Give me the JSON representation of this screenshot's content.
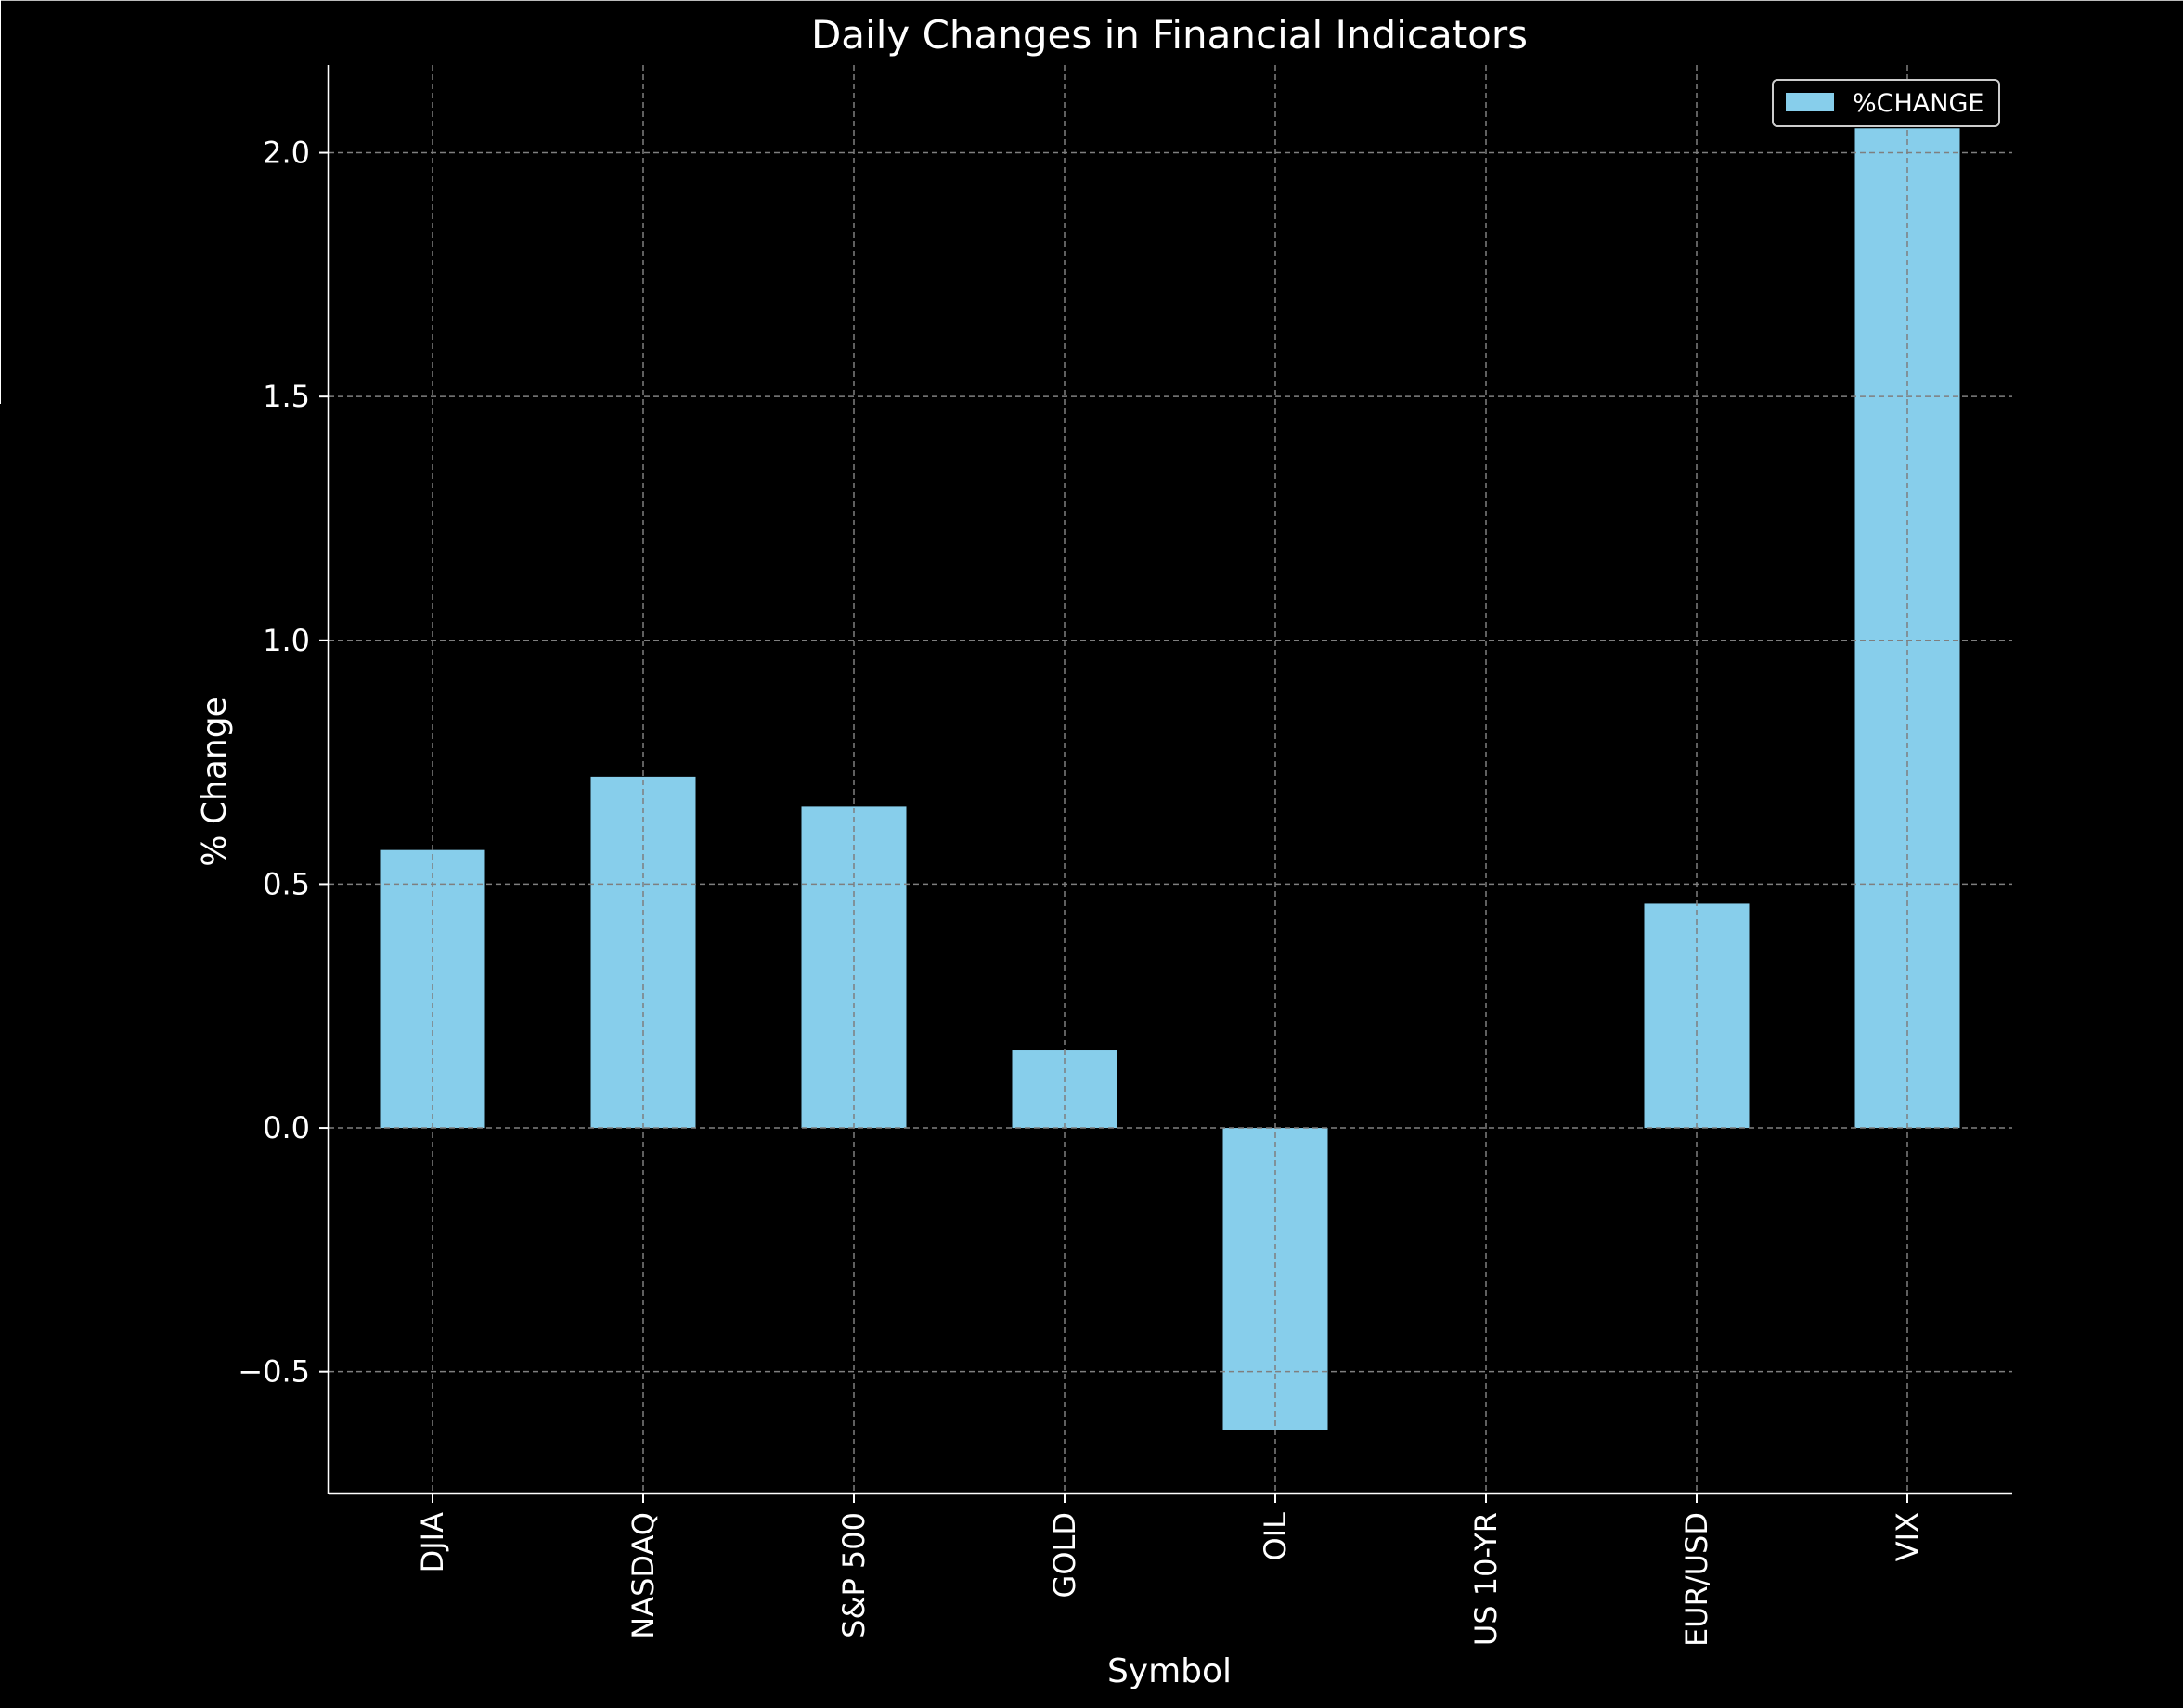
{
  "chart_data": {
    "type": "bar",
    "title": "Daily Changes in Financial Indicators",
    "xlabel": "Symbol",
    "ylabel": "% Change",
    "categories": [
      "DJIA",
      "NASDAQ",
      "S&P 500",
      "GOLD",
      "OIL",
      "US 10-YR",
      "EUR/USD",
      "VIX"
    ],
    "series": [
      {
        "name": "%CHANGE",
        "values": [
          0.57,
          0.72,
          0.66,
          0.16,
          -0.62,
          0.0,
          0.46,
          2.05
        ],
        "color": "#87CEEB"
      }
    ],
    "ylim": [
      -0.75,
      2.18
    ],
    "yticks": [
      -0.5,
      0.0,
      0.5,
      1.0,
      1.5,
      2.0
    ],
    "ytick_labels": [
      "−0.5",
      "0.0",
      "0.5",
      "1.0",
      "1.5",
      "2.0"
    ],
    "grid": true,
    "legend_position": "top-right",
    "colors": {
      "background": "#000000",
      "text": "#ffffff",
      "axis": "#ffffff",
      "grid": "#7f7f7f"
    }
  }
}
